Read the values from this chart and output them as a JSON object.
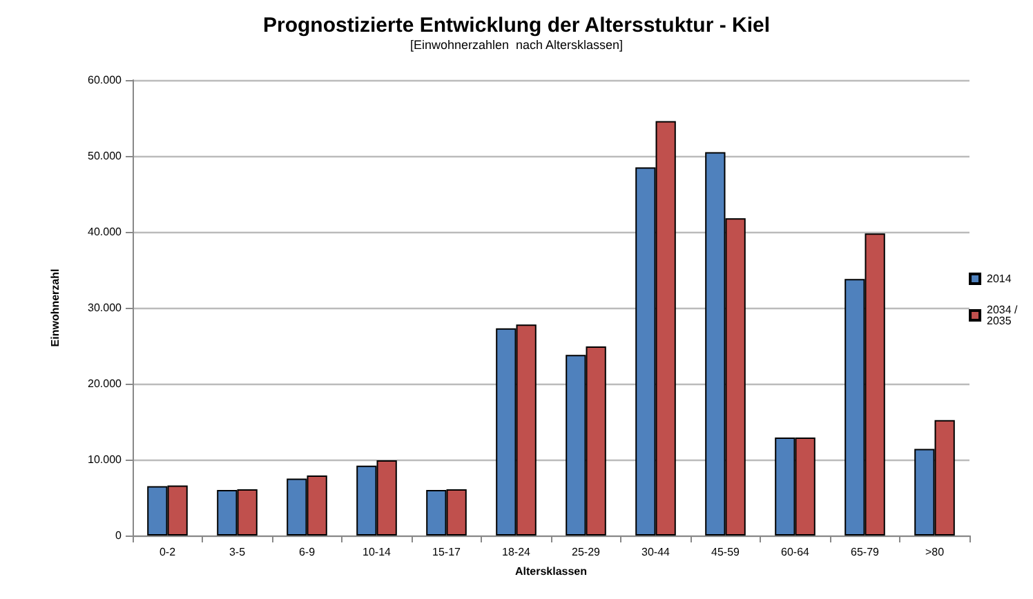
{
  "chart_data": {
    "type": "bar",
    "title": "Prognostizierte Entwicklung der Altersstuktur - Kiel",
    "subtitle": "[Einwohnerzahlen  nach Altersklassen]",
    "xlabel": "Altersklassen",
    "ylabel": "Einwohnerzahl",
    "categories": [
      "0-2",
      "3-5",
      "6-9",
      "10-14",
      "15-17",
      "18-24",
      "25-29",
      "30-44",
      "45-59",
      "60-64",
      "65-79",
      ">80"
    ],
    "series": [
      {
        "name": "2014",
        "color": "#4f81bd",
        "values": [
          6500,
          6000,
          7500,
          9200,
          6000,
          27300,
          23800,
          48500,
          50500,
          12900,
          33800,
          11400
        ]
      },
      {
        "name": "2034 / 2035",
        "color": "#c0504d",
        "values": [
          6600,
          6100,
          7900,
          9900,
          6100,
          27800,
          24900,
          54600,
          41800,
          12900,
          39800,
          15200
        ]
      }
    ],
    "ylim": [
      0,
      60000
    ],
    "yticks": [
      {
        "value": 0,
        "label": "0"
      },
      {
        "value": 10000,
        "label": "10.000"
      },
      {
        "value": 20000,
        "label": "20.000"
      },
      {
        "value": 30000,
        "label": "30.000"
      },
      {
        "value": 40000,
        "label": "40.000"
      },
      {
        "value": 50000,
        "label": "50.000"
      },
      {
        "value": 60000,
        "label": "60.000"
      }
    ],
    "grid": "y",
    "legend": "right"
  }
}
